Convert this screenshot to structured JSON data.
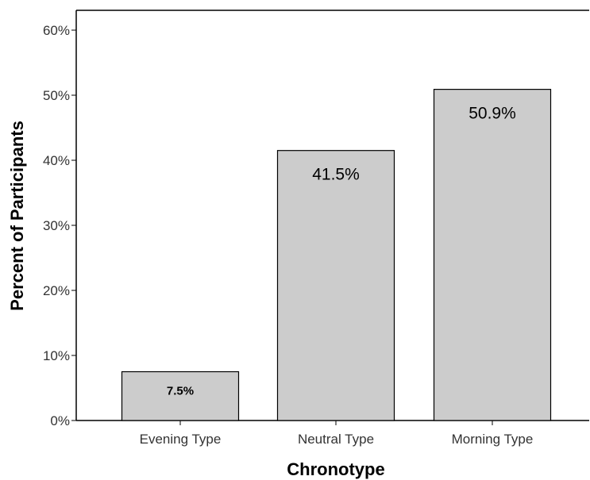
{
  "chart_data": {
    "type": "bar",
    "categories": [
      "Evening Type",
      "Neutral Type",
      "Morning Type"
    ],
    "values": [
      7.5,
      41.5,
      50.9
    ],
    "data_labels": [
      "7.5%",
      "41.5%",
      "50.9%"
    ],
    "xlabel": "Chronotype",
    "ylabel": "Percent of Participants",
    "ylim": [
      0,
      60
    ],
    "yticks": [
      0,
      10,
      20,
      30,
      40,
      50,
      60
    ],
    "ytick_labels": [
      "0%",
      "10%",
      "20%",
      "30%",
      "40%",
      "50%",
      "60%"
    ],
    "grid": false,
    "legend": "none",
    "colors": {
      "bar_fill": "#cccccc",
      "bar_stroke": "#000000",
      "axis": "#000000",
      "text": "#333333"
    }
  }
}
